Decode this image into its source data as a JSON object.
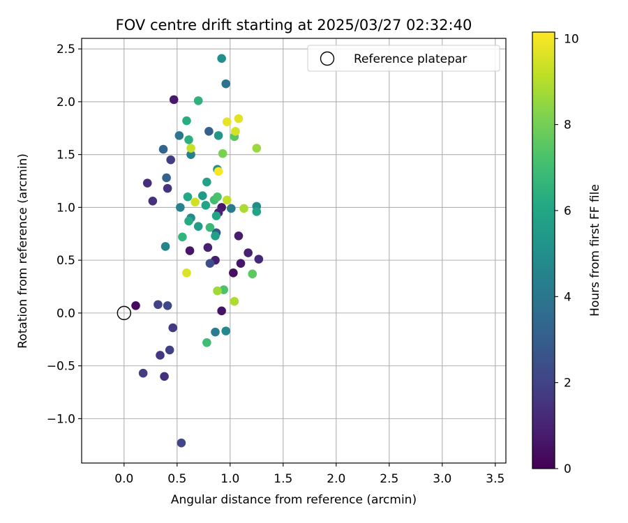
{
  "chart_data": {
    "type": "scatter",
    "title": "FOV centre drift starting at 2025/03/27 02:32:40",
    "xlabel": "Angular distance from reference (arcmin)",
    "ylabel": "Rotation from reference (arcmin)",
    "xlim": [
      -0.4,
      3.6
    ],
    "ylim": [
      -1.42,
      2.6
    ],
    "xticks": [
      0.0,
      0.5,
      1.0,
      1.5,
      2.0,
      2.5,
      3.0,
      3.5
    ],
    "xtick_labels": [
      "0.0",
      "0.5",
      "1.0",
      "1.5",
      "2.0",
      "2.5",
      "3.0",
      "3.5"
    ],
    "yticks": [
      -1.0,
      -0.5,
      0.0,
      0.5,
      1.0,
      1.5,
      2.0,
      2.5
    ],
    "ytick_labels": [
      "−1.0",
      "−0.5",
      "0.0",
      "0.5",
      "1.0",
      "1.5",
      "2.0",
      "2.5"
    ],
    "grid": true,
    "legend": {
      "placement": "top-right",
      "entries": [
        {
          "label": "Reference platepar",
          "marker": "open-circle"
        }
      ]
    },
    "reference_point": {
      "x": 0.0,
      "y": 0.0
    },
    "colorbar": {
      "label": "Hours from first FF file",
      "colormap": "viridis",
      "range": [
        0,
        10.15
      ],
      "ticks": [
        0,
        2,
        4,
        6,
        8,
        10
      ],
      "tick_labels": [
        "0",
        "2",
        "4",
        "6",
        "8",
        "10"
      ]
    },
    "points": [
      {
        "x": 0.11,
        "y": 0.07,
        "h": 0.3
      },
      {
        "x": 0.47,
        "y": 2.02,
        "h": 0.7
      },
      {
        "x": 0.92,
        "y": 0.02,
        "h": 0.5
      },
      {
        "x": 1.03,
        "y": 0.38,
        "h": 0.4
      },
      {
        "x": 1.1,
        "y": 0.47,
        "h": 0.6
      },
      {
        "x": 1.08,
        "y": 0.73,
        "h": 0.8
      },
      {
        "x": 0.92,
        "y": 1.0,
        "h": 0.7
      },
      {
        "x": 0.89,
        "y": 0.95,
        "h": 1.0
      },
      {
        "x": 0.62,
        "y": 0.59,
        "h": 0.6
      },
      {
        "x": 0.79,
        "y": 0.62,
        "h": 0.9
      },
      {
        "x": 0.86,
        "y": 0.5,
        "h": 0.8
      },
      {
        "x": 1.17,
        "y": 0.57,
        "h": 0.9
      },
      {
        "x": 1.27,
        "y": 0.51,
        "h": 1.1
      },
      {
        "x": 0.22,
        "y": 1.23,
        "h": 1.3
      },
      {
        "x": 0.27,
        "y": 1.06,
        "h": 1.4
      },
      {
        "x": 0.41,
        "y": 1.18,
        "h": 1.5
      },
      {
        "x": 0.44,
        "y": 1.45,
        "h": 1.8
      },
      {
        "x": 0.32,
        "y": 0.08,
        "h": 2.0
      },
      {
        "x": 0.41,
        "y": 0.07,
        "h": 2.2
      },
      {
        "x": 0.46,
        "y": -0.14,
        "h": 1.7
      },
      {
        "x": 0.43,
        "y": -0.35,
        "h": 1.9
      },
      {
        "x": 0.34,
        "y": -0.4,
        "h": 1.6
      },
      {
        "x": 0.18,
        "y": -0.57,
        "h": 1.8
      },
      {
        "x": 0.38,
        "y": -0.6,
        "h": 1.4
      },
      {
        "x": 0.54,
        "y": -1.23,
        "h": 2.1
      },
      {
        "x": 0.81,
        "y": 0.47,
        "h": 2.4
      },
      {
        "x": 0.87,
        "y": 0.76,
        "h": 2.8
      },
      {
        "x": 0.4,
        "y": 1.28,
        "h": 3.2
      },
      {
        "x": 0.37,
        "y": 1.55,
        "h": 3.3
      },
      {
        "x": 0.8,
        "y": 1.72,
        "h": 3.1
      },
      {
        "x": 0.96,
        "y": 2.17,
        "h": 3.8
      },
      {
        "x": 0.52,
        "y": 1.68,
        "h": 4.0
      },
      {
        "x": 0.63,
        "y": 1.5,
        "h": 4.4
      },
      {
        "x": 0.39,
        "y": 0.63,
        "h": 4.6
      },
      {
        "x": 0.53,
        "y": 1.0,
        "h": 4.5
      },
      {
        "x": 0.63,
        "y": 0.9,
        "h": 4.8
      },
      {
        "x": 0.86,
        "y": -0.18,
        "h": 4.3
      },
      {
        "x": 0.96,
        "y": -0.17,
        "h": 4.7
      },
      {
        "x": 1.01,
        "y": 0.99,
        "h": 4.2
      },
      {
        "x": 1.25,
        "y": 1.01,
        "h": 4.9
      },
      {
        "x": 0.92,
        "y": 2.41,
        "h": 5.0
      },
      {
        "x": 0.88,
        "y": 1.36,
        "h": 5.1
      },
      {
        "x": 0.89,
        "y": 1.68,
        "h": 5.4
      },
      {
        "x": 0.74,
        "y": 1.11,
        "h": 5.5
      },
      {
        "x": 0.7,
        "y": 0.82,
        "h": 5.6
      },
      {
        "x": 0.78,
        "y": 1.24,
        "h": 5.8
      },
      {
        "x": 0.77,
        "y": 1.02,
        "h": 5.9
      },
      {
        "x": 0.87,
        "y": 0.92,
        "h": 6.0
      },
      {
        "x": 0.6,
        "y": 1.1,
        "h": 6.1
      },
      {
        "x": 0.61,
        "y": 0.87,
        "h": 6.2
      },
      {
        "x": 0.86,
        "y": 0.73,
        "h": 5.7
      },
      {
        "x": 1.25,
        "y": 0.96,
        "h": 5.9
      },
      {
        "x": 0.59,
        "y": 1.82,
        "h": 6.3
      },
      {
        "x": 0.61,
        "y": 1.64,
        "h": 6.4
      },
      {
        "x": 0.7,
        "y": 2.01,
        "h": 6.5
      },
      {
        "x": 0.55,
        "y": 0.72,
        "h": 6.6
      },
      {
        "x": 0.81,
        "y": 0.81,
        "h": 6.8
      },
      {
        "x": 0.85,
        "y": 1.07,
        "h": 7.0
      },
      {
        "x": 0.88,
        "y": 1.1,
        "h": 7.2
      },
      {
        "x": 0.78,
        "y": -0.28,
        "h": 7.0
      },
      {
        "x": 0.94,
        "y": 0.22,
        "h": 7.3
      },
      {
        "x": 1.04,
        "y": 1.67,
        "h": 7.5
      },
      {
        "x": 1.21,
        "y": 0.37,
        "h": 7.6
      },
      {
        "x": 0.93,
        "y": 1.51,
        "h": 8.1
      },
      {
        "x": 0.88,
        "y": 0.21,
        "h": 8.7
      },
      {
        "x": 1.04,
        "y": 0.11,
        "h": 8.9
      },
      {
        "x": 1.13,
        "y": 0.99,
        "h": 8.9
      },
      {
        "x": 1.25,
        "y": 1.56,
        "h": 8.6
      },
      {
        "x": 0.63,
        "y": 1.56,
        "h": 9.3
      },
      {
        "x": 0.67,
        "y": 1.05,
        "h": 9.4
      },
      {
        "x": 0.59,
        "y": 0.38,
        "h": 9.6
      },
      {
        "x": 0.97,
        "y": 1.07,
        "h": 9.2
      },
      {
        "x": 0.89,
        "y": 1.34,
        "h": 10.1
      },
      {
        "x": 0.97,
        "y": 1.81,
        "h": 9.8
      },
      {
        "x": 1.05,
        "y": 1.72,
        "h": 9.5
      },
      {
        "x": 1.08,
        "y": 1.84,
        "h": 9.7
      }
    ]
  }
}
